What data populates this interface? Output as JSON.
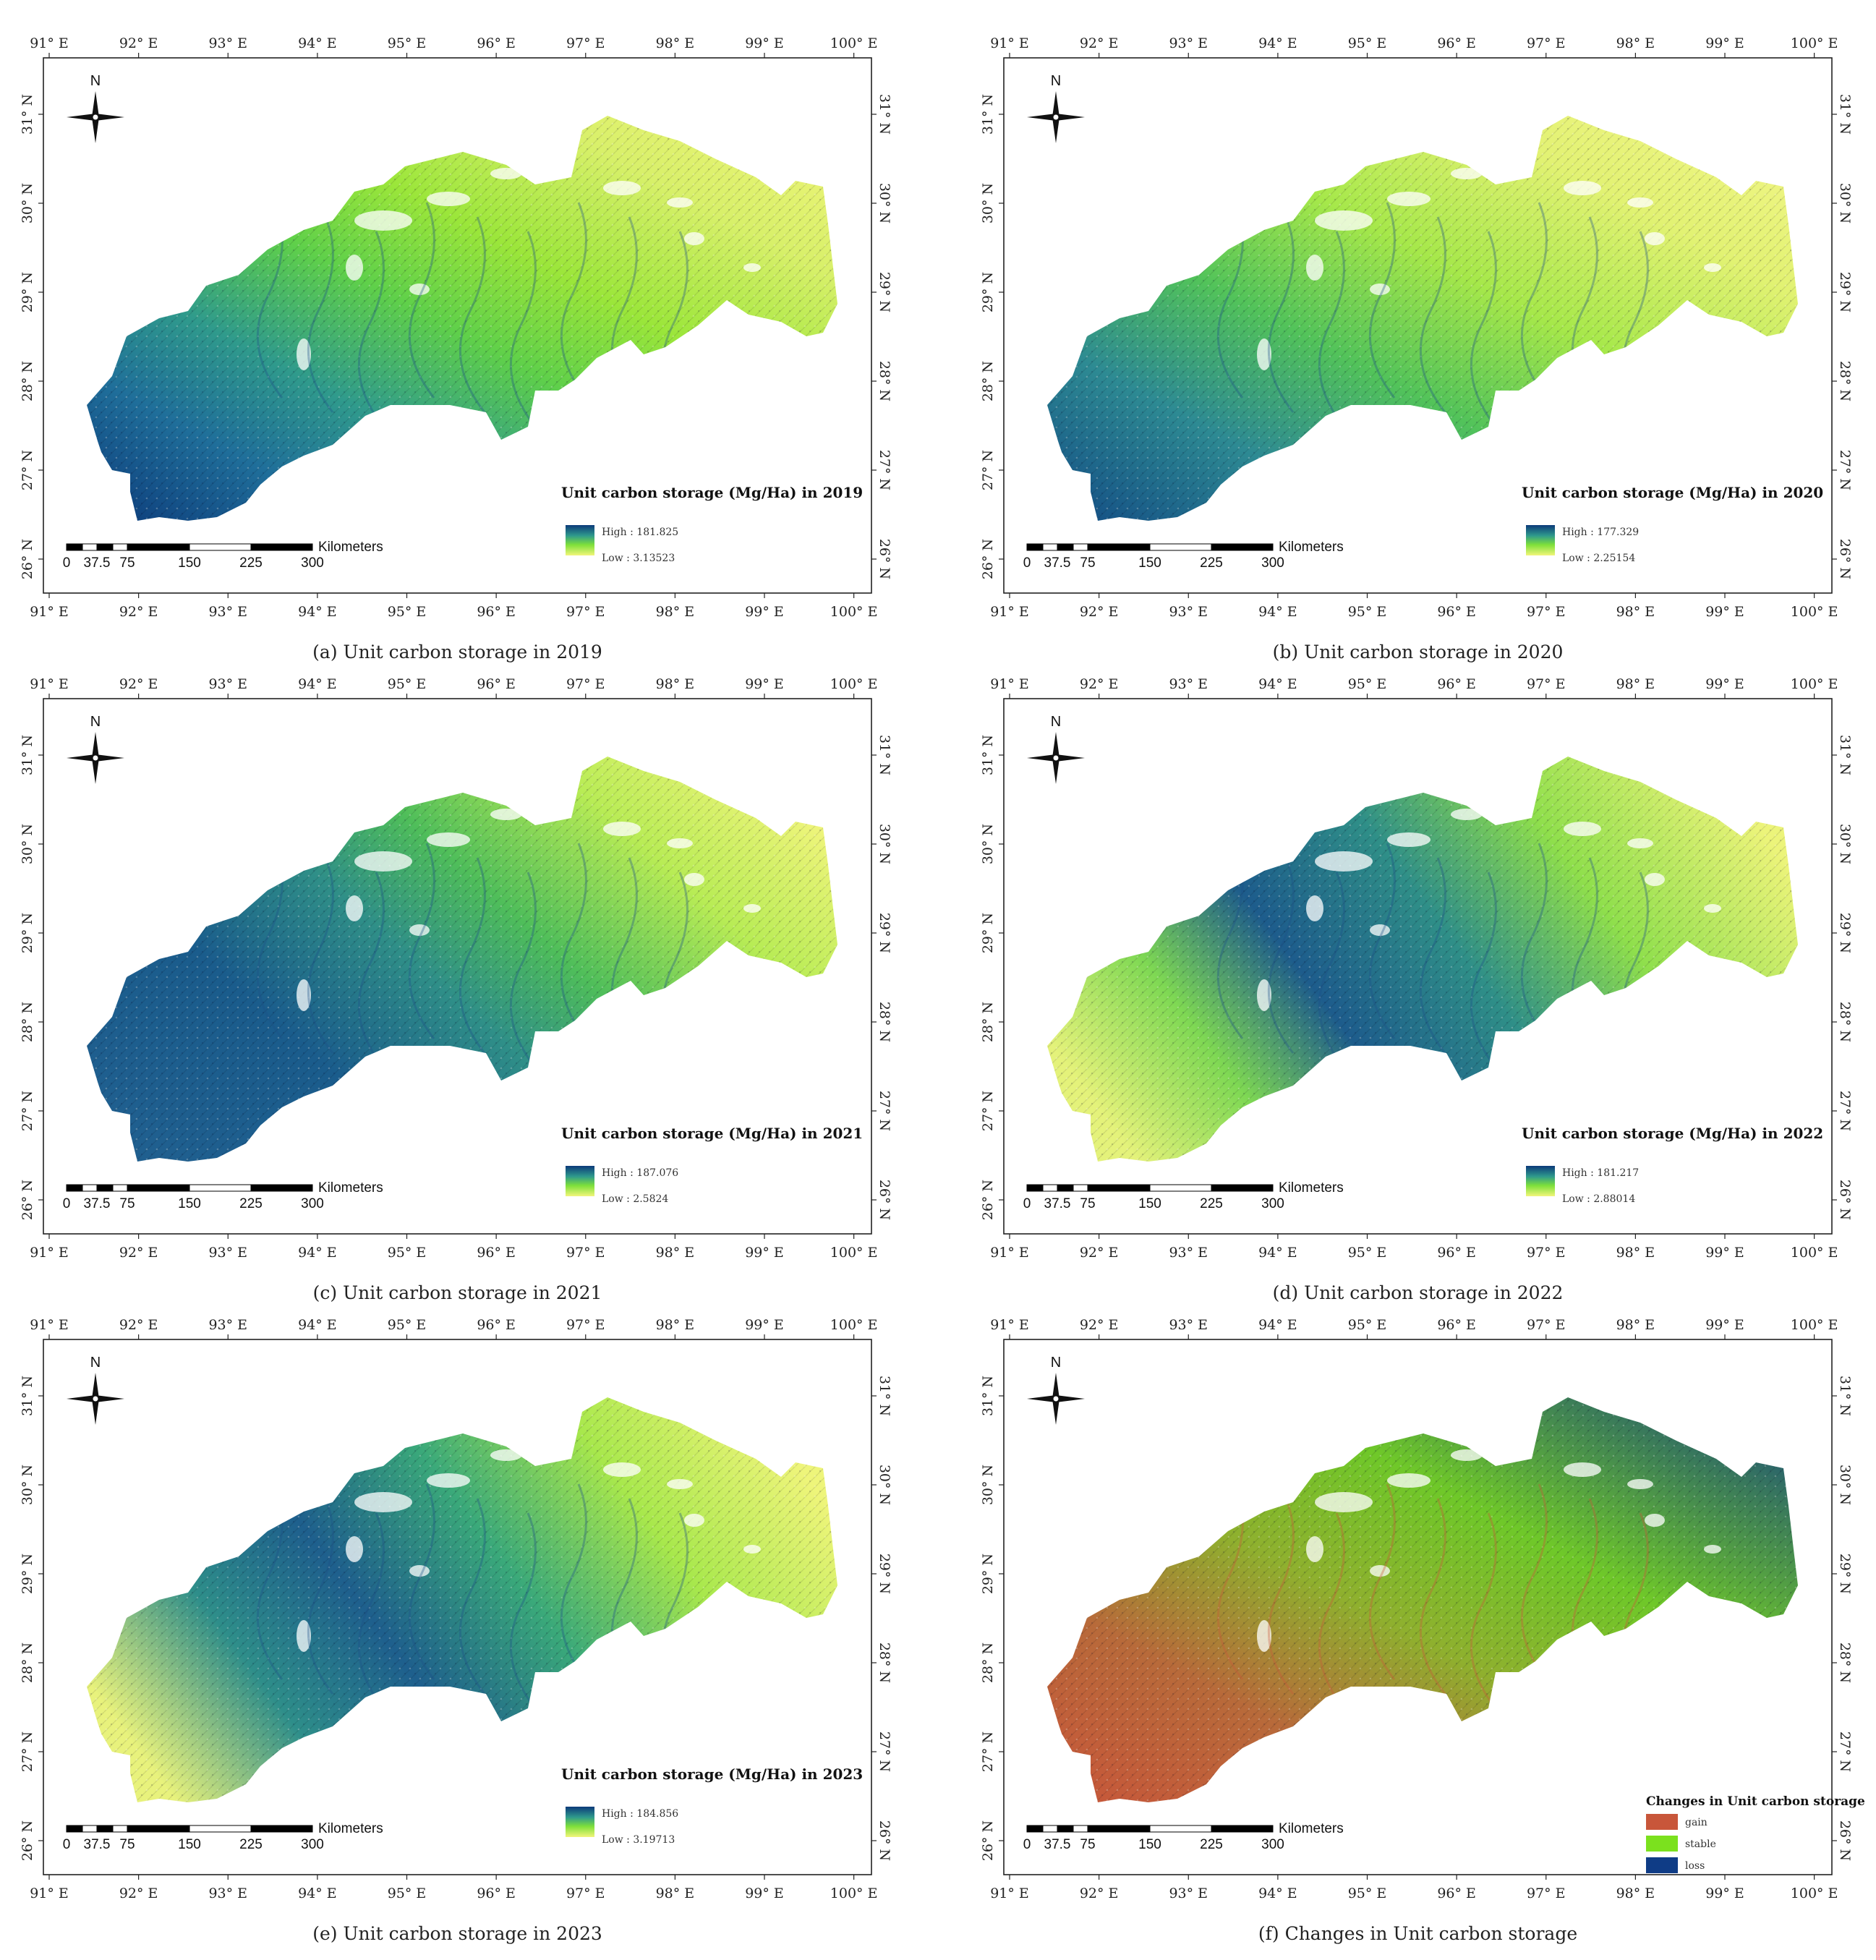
{
  "grid": {
    "lon_labels": [
      "91° E",
      "92° E",
      "93° E",
      "94° E",
      "95° E",
      "96° E",
      "97° E",
      "98° E",
      "99° E",
      "100° E"
    ],
    "lat_labels": [
      "31° N",
      "30° N",
      "29° N",
      "28° N",
      "27° N",
      "26° N"
    ]
  },
  "north_label": "N",
  "scale_bar": {
    "labels": [
      "0",
      "37.5",
      "75",
      "150",
      "225",
      "300"
    ],
    "unit": "Kilometers"
  },
  "colors": {
    "high": "#0c3a7a",
    "mid": "#2f9a8c",
    "low_green": "#7ee03a",
    "low_yellow": "#f2f57a",
    "gain": "#c8563a",
    "stable": "#7be11e",
    "loss": "#0f3c86"
  },
  "panels": [
    {
      "caption": "(a) Unit carbon storage in 2019",
      "legend_title": "Unit carbon storage (Mg/Ha) in 2019",
      "high_label": "High : 181.825",
      "low_label": "Low : 3.13523"
    },
    {
      "caption": "(b) Unit carbon storage in 2020",
      "legend_title": "Unit carbon storage (Mg/Ha) in 2020",
      "high_label": "High : 177.329",
      "low_label": "Low : 2.25154"
    },
    {
      "caption": "(c) Unit carbon storage in 2021",
      "legend_title": "Unit carbon storage (Mg/Ha) in 2021",
      "high_label": "High : 187.076",
      "low_label": "Low : 2.5824"
    },
    {
      "caption": "(d) Unit carbon storage in 2022",
      "legend_title": "Unit carbon storage (Mg/Ha) in 2022",
      "high_label": "High : 181.217",
      "low_label": "Low : 2.88014"
    },
    {
      "caption": "(e) Unit carbon storage in 2023",
      "legend_title": "Unit carbon storage (Mg/Ha) in 2023",
      "high_label": "High : 184.856",
      "low_label": "Low : 3.19713"
    },
    {
      "caption": "(f) Changes in Unit carbon storage",
      "legend_title": "Changes in Unit carbon storage",
      "classes": [
        "gain",
        "stable",
        "loss"
      ]
    }
  ]
}
